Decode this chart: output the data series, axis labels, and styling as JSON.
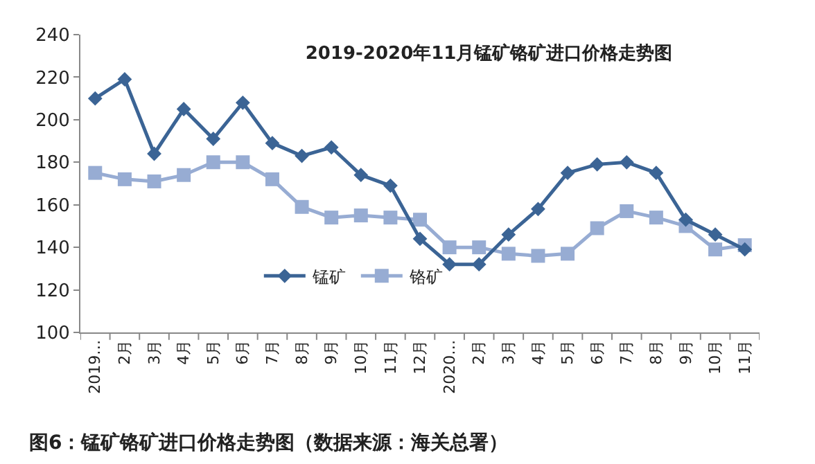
{
  "chart_data": {
    "type": "line",
    "title": "2019-2020年11月锰矿铬矿进口价格走势图",
    "categories": [
      "2019…",
      "2月",
      "3月",
      "4月",
      "5月",
      "6月",
      "7月",
      "8月",
      "9月",
      "10月",
      "11月",
      "12月",
      "2020…",
      "2月",
      "3月",
      "4月",
      "5月",
      "6月",
      "7月",
      "8月",
      "9月",
      "10月",
      "11月"
    ],
    "series": [
      {
        "name": "锰矿",
        "color": "#3b6495",
        "marker": "diamond",
        "values": [
          210,
          219,
          184,
          205,
          191,
          208,
          189,
          183,
          187,
          174,
          169,
          144,
          132,
          132,
          146,
          158,
          175,
          179,
          180,
          175,
          153,
          146,
          139
        ]
      },
      {
        "name": "铬矿",
        "color": "#97acd3",
        "marker": "square",
        "values": [
          175,
          172,
          171,
          174,
          180,
          180,
          172,
          159,
          154,
          155,
          154,
          153,
          140,
          140,
          137,
          136,
          137,
          149,
          157,
          154,
          150,
          139,
          141
        ]
      }
    ],
    "ylim": [
      100,
      240
    ],
    "yticks": [
      100,
      120,
      140,
      160,
      180,
      200,
      220,
      240
    ],
    "grid": false,
    "legend": "bottom left",
    "annotations": [
      "图6：锰矿铬矿进口价格走势图（数据来源：海关总署）"
    ]
  }
}
